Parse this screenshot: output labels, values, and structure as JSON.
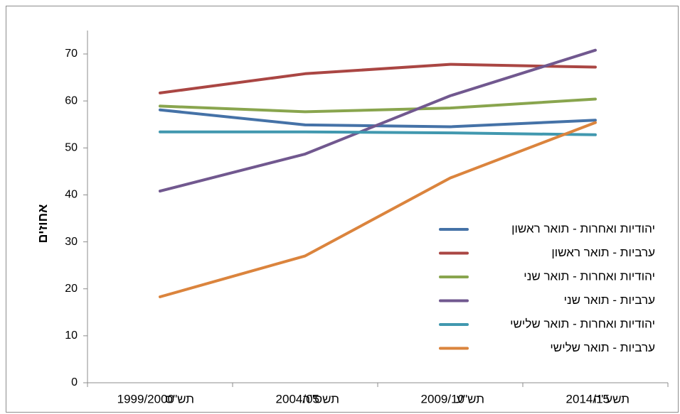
{
  "chart_data": {
    "type": "line",
    "ylabel": "אחוזים",
    "ylim": [
      0,
      70
    ],
    "yticks": [
      0,
      10,
      20,
      30,
      40,
      50,
      60,
      70
    ],
    "categories": [
      {
        "year": "1999/2000",
        "hebrew": "תש\"ס"
      },
      {
        "year": "2004/05",
        "hebrew": "תשס\"ה"
      },
      {
        "year": "2009/10",
        "hebrew": "תש\"ע"
      },
      {
        "year": "2014/15",
        "hebrew": "תשע\"ה"
      }
    ],
    "legend_position": "right",
    "grid": false,
    "series": [
      {
        "name": "יהודיות ואחרות - תואר ראשון",
        "color": "#4572a7",
        "values": [
          58.1,
          54.9,
          54.5,
          55.9
        ]
      },
      {
        "name": "ערביות - תואר ראשון",
        "color": "#aa4643",
        "values": [
          61.7,
          65.8,
          67.8,
          67.2
        ]
      },
      {
        "name": "יהודיות ואחרות - תואר שני",
        "color": "#89a54e",
        "values": [
          58.9,
          57.7,
          58.5,
          60.4
        ]
      },
      {
        "name": "ערביות - תואר שני",
        "color": "#71588f",
        "values": [
          40.8,
          48.7,
          61.1,
          70.8
        ]
      },
      {
        "name": "יהודיות ואחרות - תואר שלישי",
        "color": "#4198af",
        "values": [
          53.4,
          53.4,
          53.2,
          52.8
        ]
      },
      {
        "name": "ערביות - תואר שלישי",
        "color": "#db843d",
        "values": [
          18.3,
          27.0,
          43.6,
          55.4
        ]
      }
    ]
  }
}
